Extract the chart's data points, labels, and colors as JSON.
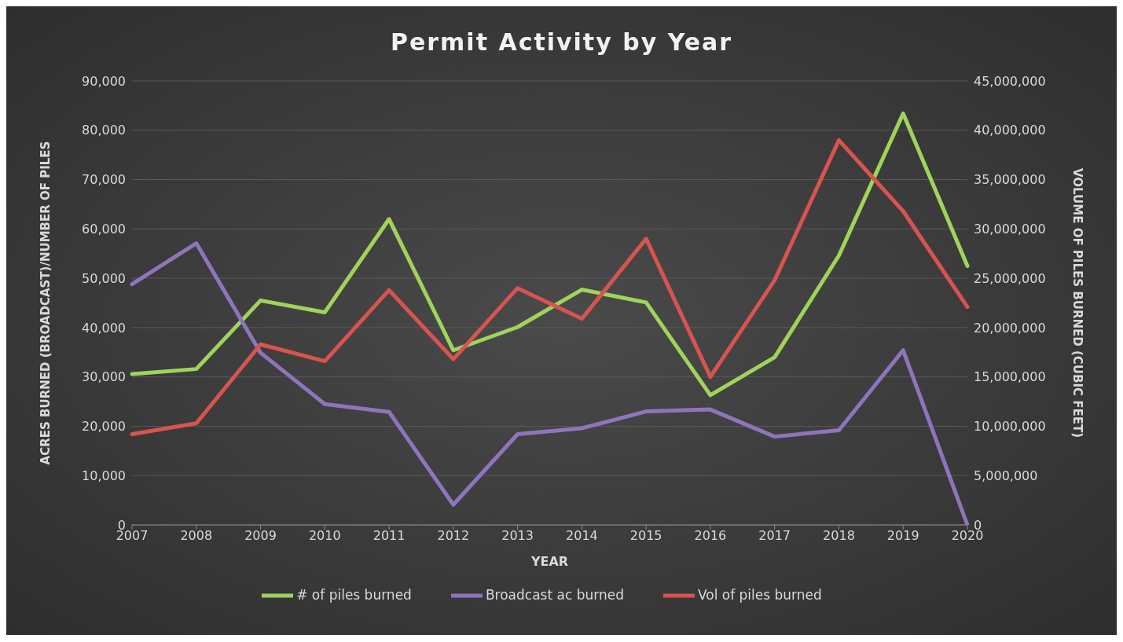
{
  "chart_data": {
    "type": "line",
    "title": "Permit Activity by Year",
    "xlabel": "YEAR",
    "ylabel": "ACRES BURNED (BROADCAST)/NUMBER OF PILES",
    "y2label": "VOLUME OF PILES BURNED (CUBIC FEET)",
    "categories": [
      "2007",
      "2008",
      "2009",
      "2010",
      "2011",
      "2012",
      "2013",
      "2014",
      "2015",
      "2016",
      "2017",
      "2018",
      "2019",
      "2020"
    ],
    "series": [
      {
        "name": "# of piles burned",
        "color": "#9fd45a",
        "values": [
          30600,
          31600,
          45500,
          43100,
          62000,
          35400,
          40100,
          47700,
          45100,
          26300,
          34000,
          54600,
          83400,
          52500
        ]
      },
      {
        "name": "Broadcast ac burned",
        "color": "#8f74bd",
        "values": [
          48800,
          57100,
          34900,
          24500,
          22900,
          4100,
          18400,
          19600,
          23000,
          23400,
          17900,
          19200,
          35400,
          0
        ]
      },
      {
        "name": "Vol of piles burned",
        "color": "#d9534f",
        "axis": "y2",
        "values": [
          9200000,
          10300000,
          18300000,
          16600000,
          23800000,
          16800000,
          24000000,
          20900000,
          29000000,
          15000000,
          24800000,
          39000000,
          31800000,
          22100000
        ]
      }
    ],
    "ylim": [
      0,
      90000
    ],
    "yticks": [
      0,
      {
        "value": 10000,
        "label": "10,000"
      },
      {
        "value": 20000,
        "label": "20,000"
      },
      {
        "value": 30000,
        "label": "30,000"
      },
      {
        "value": 40000,
        "label": "40,000"
      },
      {
        "value": 50000,
        "label": "50,000"
      },
      {
        "value": 60000,
        "label": "60,000"
      },
      {
        "value": 70000,
        "label": "70,000"
      },
      {
        "value": 80000,
        "label": "80,000"
      },
      {
        "value": 90000,
        "label": "90,000"
      }
    ],
    "y2lim": [
      0,
      45000000
    ],
    "y2ticks": [
      0,
      {
        "value": 5000000,
        "label": "5,000,000"
      },
      {
        "value": 10000000,
        "label": "10,000,000"
      },
      {
        "value": 15000000,
        "label": "15,000,000"
      },
      {
        "value": 20000000,
        "label": "20,000,000"
      },
      {
        "value": 25000000,
        "label": "25,000,000"
      },
      {
        "value": 30000000,
        "label": "30,000,000"
      },
      {
        "value": 35000000,
        "label": "35,000,000"
      },
      {
        "value": 40000000,
        "label": "40,000,000"
      },
      {
        "value": 45000000,
        "label": "45,000,000"
      }
    ],
    "grid": "y",
    "legend": "bottom",
    "line_style": "solid"
  }
}
